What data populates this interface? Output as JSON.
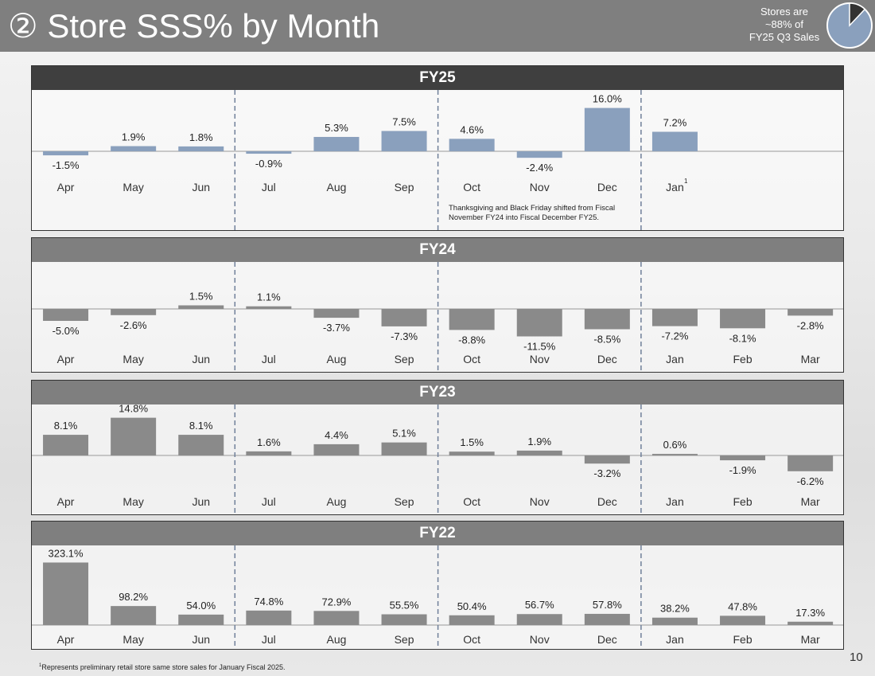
{
  "header": {
    "title": "② Store SSS% by Month",
    "stores_note": [
      "Stores are",
      "~88% of",
      "FY25 Q3 Sales"
    ],
    "stores_share_pct": 88
  },
  "chart_data": [
    {
      "type": "bar",
      "title": "FY25",
      "categories": [
        "Apr",
        "May",
        "Jun",
        "Jul",
        "Aug",
        "Sep",
        "Oct",
        "Nov",
        "Dec",
        "Jan"
      ],
      "values": [
        -1.5,
        1.9,
        1.8,
        -0.9,
        5.3,
        7.5,
        4.6,
        -2.4,
        16.0,
        7.2
      ],
      "labels": [
        "-1.5%",
        "1.9%",
        "1.8%",
        "-0.9%",
        "5.3%",
        "7.5%",
        "4.6%",
        "-2.4%",
        "16.0%",
        "7.2%"
      ],
      "color": "#8aa0bd",
      "annotation": [
        "Thanksgiving and Black Friday shifted from Fiscal",
        "November FY24 into Fiscal December FY25."
      ],
      "footnote_marker": "1"
    },
    {
      "type": "bar",
      "title": "FY24",
      "categories": [
        "Apr",
        "May",
        "Jun",
        "Jul",
        "Aug",
        "Sep",
        "Oct",
        "Nov",
        "Dec",
        "Jan",
        "Feb",
        "Mar"
      ],
      "values": [
        -5.0,
        -2.6,
        1.5,
        1.1,
        -3.7,
        -7.3,
        -8.8,
        -11.5,
        -8.5,
        -7.2,
        -8.1,
        -2.8
      ],
      "labels": [
        "-5.0%",
        "-2.6%",
        "1.5%",
        "1.1%",
        "-3.7%",
        "-7.3%",
        "-8.8%",
        "-11.5%",
        "-8.5%",
        "-7.2%",
        "-8.1%",
        "-2.8%"
      ],
      "color": "#8a8a8a"
    },
    {
      "type": "bar",
      "title": "FY23",
      "categories": [
        "Apr",
        "May",
        "Jun",
        "Jul",
        "Aug",
        "Sep",
        "Oct",
        "Nov",
        "Dec",
        "Jan",
        "Feb",
        "Mar"
      ],
      "values": [
        8.1,
        14.8,
        8.1,
        1.6,
        4.4,
        5.1,
        1.5,
        1.9,
        -3.2,
        0.6,
        -1.9,
        -6.2
      ],
      "labels": [
        "8.1%",
        "14.8%",
        "8.1%",
        "1.6%",
        "4.4%",
        "5.1%",
        "1.5%",
        "1.9%",
        "-3.2%",
        "0.6%",
        "-1.9%",
        "-6.2%"
      ],
      "color": "#8a8a8a"
    },
    {
      "type": "bar",
      "title": "FY22",
      "categories": [
        "Apr",
        "May",
        "Jun",
        "Jul",
        "Aug",
        "Sep",
        "Oct",
        "Nov",
        "Dec",
        "Jan",
        "Feb",
        "Mar"
      ],
      "values": [
        323.1,
        98.2,
        54.0,
        74.8,
        72.9,
        55.5,
        50.4,
        56.7,
        57.8,
        38.2,
        47.8,
        17.3
      ],
      "labels": [
        "323.1%",
        "98.2%",
        "54.0%",
        "74.8%",
        "72.9%",
        "55.5%",
        "50.4%",
        "56.7%",
        "57.8%",
        "38.2%",
        "47.8%",
        "17.3%"
      ],
      "color": "#8a8a8a"
    }
  ],
  "footnote": {
    "marker": "1",
    "text": "Represents preliminary retail store same store sales for January Fiscal 2025."
  },
  "page_number": "10"
}
